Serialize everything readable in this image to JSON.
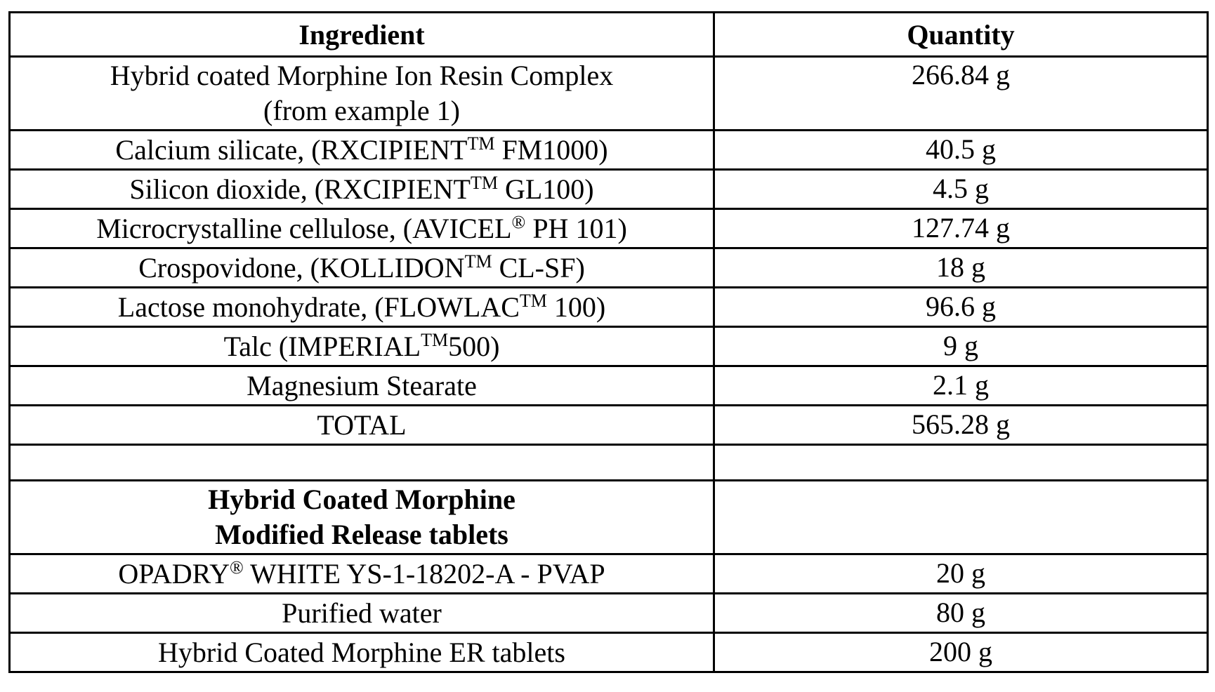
{
  "table": {
    "headers": {
      "ingredient": "Ingredient",
      "quantity": "Quantity"
    },
    "rows": [
      {
        "ingredient_line1": "Hybrid coated Morphine Ion Resin Complex",
        "ingredient_line2": "(from example 1)",
        "quantity": "266.84 g"
      },
      {
        "ingredient_pre": "Calcium silicate, (RXCIPIENT",
        "mark": "TM",
        "ingredient_post": " FM1000)",
        "quantity": "40.5 g"
      },
      {
        "ingredient_pre": "Silicon dioxide, (RXCIPIENT",
        "mark": "TM",
        "ingredient_post": " GL100)",
        "quantity": "4.5 g"
      },
      {
        "ingredient_pre": "Microcrystalline cellulose, (AVICEL",
        "mark": "®",
        "ingredient_post": " PH 101)",
        "quantity": "127.74 g"
      },
      {
        "ingredient_pre": "Crospovidone, (KOLLIDON",
        "mark": "TM",
        "ingredient_post": " CL-SF)",
        "quantity": "18 g"
      },
      {
        "ingredient_pre": "Lactose monohydrate, (FLOWLAC",
        "mark": "TM",
        "ingredient_post": " 100)",
        "quantity": "96.6 g"
      },
      {
        "ingredient_pre": "Talc (IMPERIAL",
        "mark": "TM",
        "ingredient_post": "500)",
        "quantity": "9 g"
      },
      {
        "ingredient": "Magnesium Stearate",
        "quantity": "2.1 g"
      },
      {
        "ingredient": "TOTAL",
        "quantity": "565.28 g"
      },
      {
        "ingredient": "",
        "quantity": ""
      },
      {
        "ingredient_line1": "Hybrid Coated Morphine",
        "ingredient_line2": "Modified Release tablets",
        "quantity": ""
      },
      {
        "ingredient_pre": "OPADRY",
        "mark": "®",
        "ingredient_post": " WHITE YS-1-18202-A - PVAP",
        "quantity": "20 g"
      },
      {
        "ingredient": "Purified water",
        "quantity": "80 g"
      },
      {
        "ingredient": "Hybrid Coated Morphine ER tablets",
        "quantity": "200 g"
      }
    ]
  }
}
